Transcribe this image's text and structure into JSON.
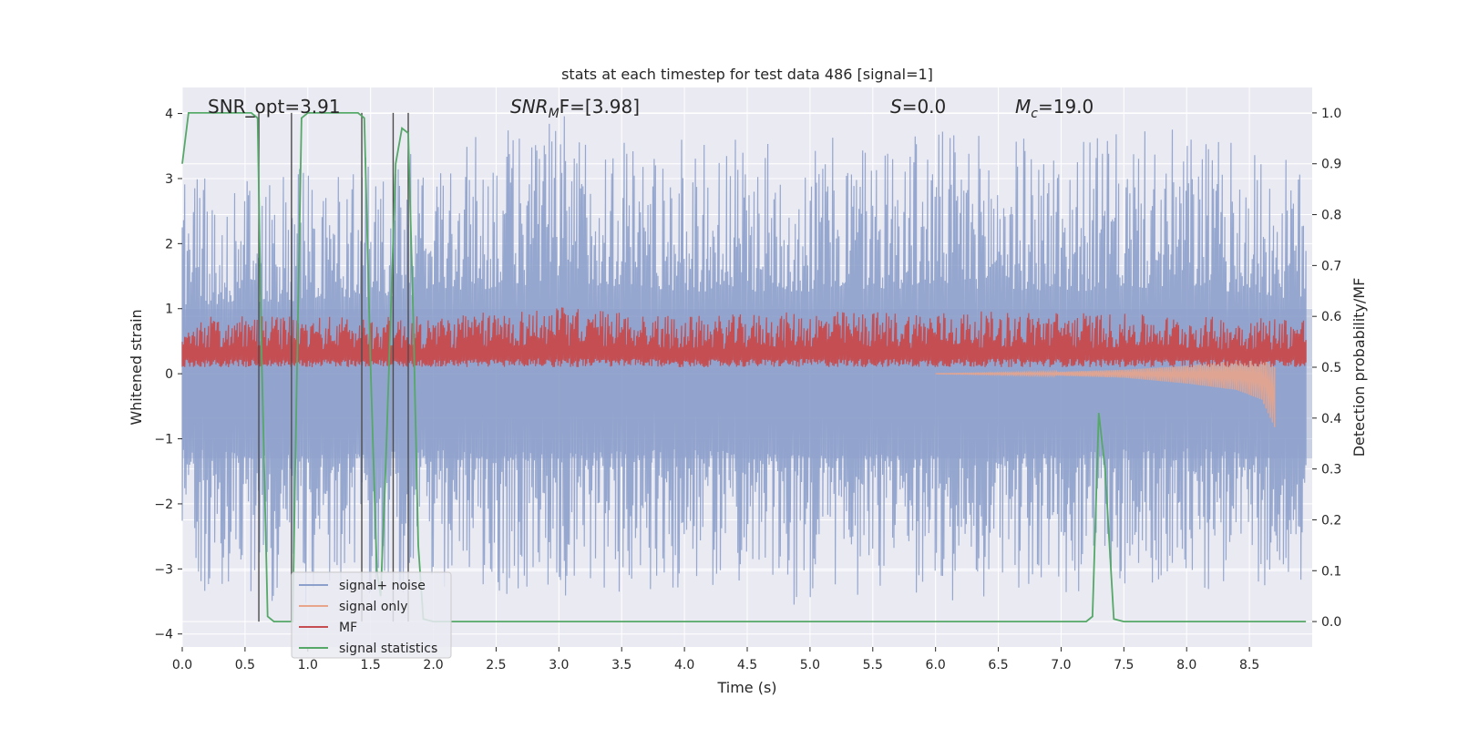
{
  "chart_data": {
    "type": "line",
    "title": "stats at each timestep for test data 486 [signal=1]",
    "xlabel": "Time (s)",
    "ylabel": "Whitened strain",
    "y2label": "Detection probability/MF",
    "xlim": [
      0.0,
      9.0
    ],
    "ylim": [
      -4.2,
      4.4
    ],
    "y2lim": [
      -0.05,
      1.05
    ],
    "xticks": [
      "0.0",
      "0.5",
      "1.0",
      "1.5",
      "2.0",
      "2.5",
      "3.0",
      "3.5",
      "4.0",
      "4.5",
      "5.0",
      "5.5",
      "6.0",
      "6.5",
      "7.0",
      "7.5",
      "8.0",
      "8.5"
    ],
    "yticks": [
      "−4",
      "−3",
      "−2",
      "−1",
      "0",
      "1",
      "2",
      "3",
      "4"
    ],
    "y2ticks": [
      "0.0",
      "0.1",
      "0.2",
      "0.3",
      "0.4",
      "0.5",
      "0.6",
      "0.7",
      "0.8",
      "0.9",
      "1.0"
    ],
    "grid": true,
    "legend_position": "lower-left",
    "annotations": {
      "snr_opt": "SNR_opt=3.91",
      "snr_mf_main": "SNR",
      "snr_mf_sub": "M",
      "snr_mf_rest": "F=[3.98]",
      "s_main": "S",
      "s_rest": "=0.0",
      "mc_main": "M",
      "mc_sub": "c",
      "mc_rest": "=19.0"
    },
    "series": [
      {
        "name": "signal+ noise",
        "color": "#8da0cb",
        "axis": "left",
        "envelope": {
          "x": [
            0.0,
            1.0,
            2.0,
            3.0,
            4.0,
            5.0,
            6.0,
            7.0,
            8.0,
            8.95
          ],
          "upper": [
            3.0,
            3.2,
            3.5,
            4.0,
            3.6,
            3.6,
            3.8,
            3.6,
            3.8,
            3.2
          ],
          "lower": [
            -3.3,
            -3.6,
            -3.3,
            -3.5,
            -3.3,
            -3.6,
            -3.5,
            -3.4,
            -3.2,
            -3.8
          ]
        }
      },
      {
        "name": "signal only",
        "color": "#e8a58c",
        "axis": "left",
        "envelope": {
          "x": [
            6.0,
            7.0,
            7.5,
            8.0,
            8.4,
            8.6,
            8.7
          ],
          "upper": [
            0.0,
            0.03,
            0.06,
            0.12,
            0.2,
            0.25,
            0.1
          ],
          "lower": [
            0.0,
            -0.03,
            -0.06,
            -0.15,
            -0.25,
            -0.4,
            -0.82
          ]
        }
      },
      {
        "name": "MF",
        "color": "#c44e52",
        "axis": "right",
        "envelope": {
          "x": [
            0.0,
            1.0,
            2.0,
            3.0,
            4.0,
            5.0,
            6.0,
            7.0,
            8.0,
            8.95
          ],
          "upper": [
            0.6,
            0.6,
            0.6,
            0.62,
            0.6,
            0.61,
            0.61,
            0.61,
            0.6,
            0.6
          ],
          "lower": [
            0.5,
            0.5,
            0.5,
            0.5,
            0.5,
            0.5,
            0.5,
            0.5,
            0.5,
            0.5
          ]
        }
      },
      {
        "name": "signal statistics",
        "color": "#55a868",
        "axis": "right",
        "x": [
          0.0,
          0.05,
          0.1,
          0.55,
          0.6,
          0.63,
          0.68,
          0.73,
          0.8,
          0.88,
          0.9,
          0.95,
          1.0,
          1.05,
          1.4,
          1.45,
          1.5,
          1.55,
          1.58,
          1.62,
          1.66,
          1.7,
          1.75,
          1.8,
          1.84,
          1.88,
          1.92,
          2.0,
          2.5,
          3.0,
          4.0,
          5.0,
          6.0,
          7.0,
          7.2,
          7.25,
          7.3,
          7.35,
          7.42,
          7.5,
          8.0,
          8.95
        ],
        "y": [
          0.9,
          1.0,
          1.0,
          1.0,
          0.99,
          0.55,
          0.01,
          0.0,
          0.0,
          0.0,
          0.3,
          0.99,
          1.0,
          1.0,
          1.0,
          0.99,
          0.5,
          0.1,
          0.05,
          0.3,
          0.6,
          0.9,
          0.97,
          0.96,
          0.6,
          0.15,
          0.005,
          0.0,
          0.0,
          0.0,
          0.0,
          0.0,
          0.0,
          0.0,
          0.0,
          0.01,
          0.41,
          0.3,
          0.005,
          0.0,
          0.0,
          0.0
        ]
      }
    ],
    "vertical_lines": {
      "color": "#4c4c4c",
      "x": [
        0.61,
        0.87,
        1.43,
        1.68,
        1.8
      ],
      "tops": [
        1.0,
        1.0,
        1.0,
        1.0,
        1.0
      ],
      "bottoms": [
        0.0,
        0.0,
        0.0,
        0.0,
        0.0
      ]
    }
  }
}
